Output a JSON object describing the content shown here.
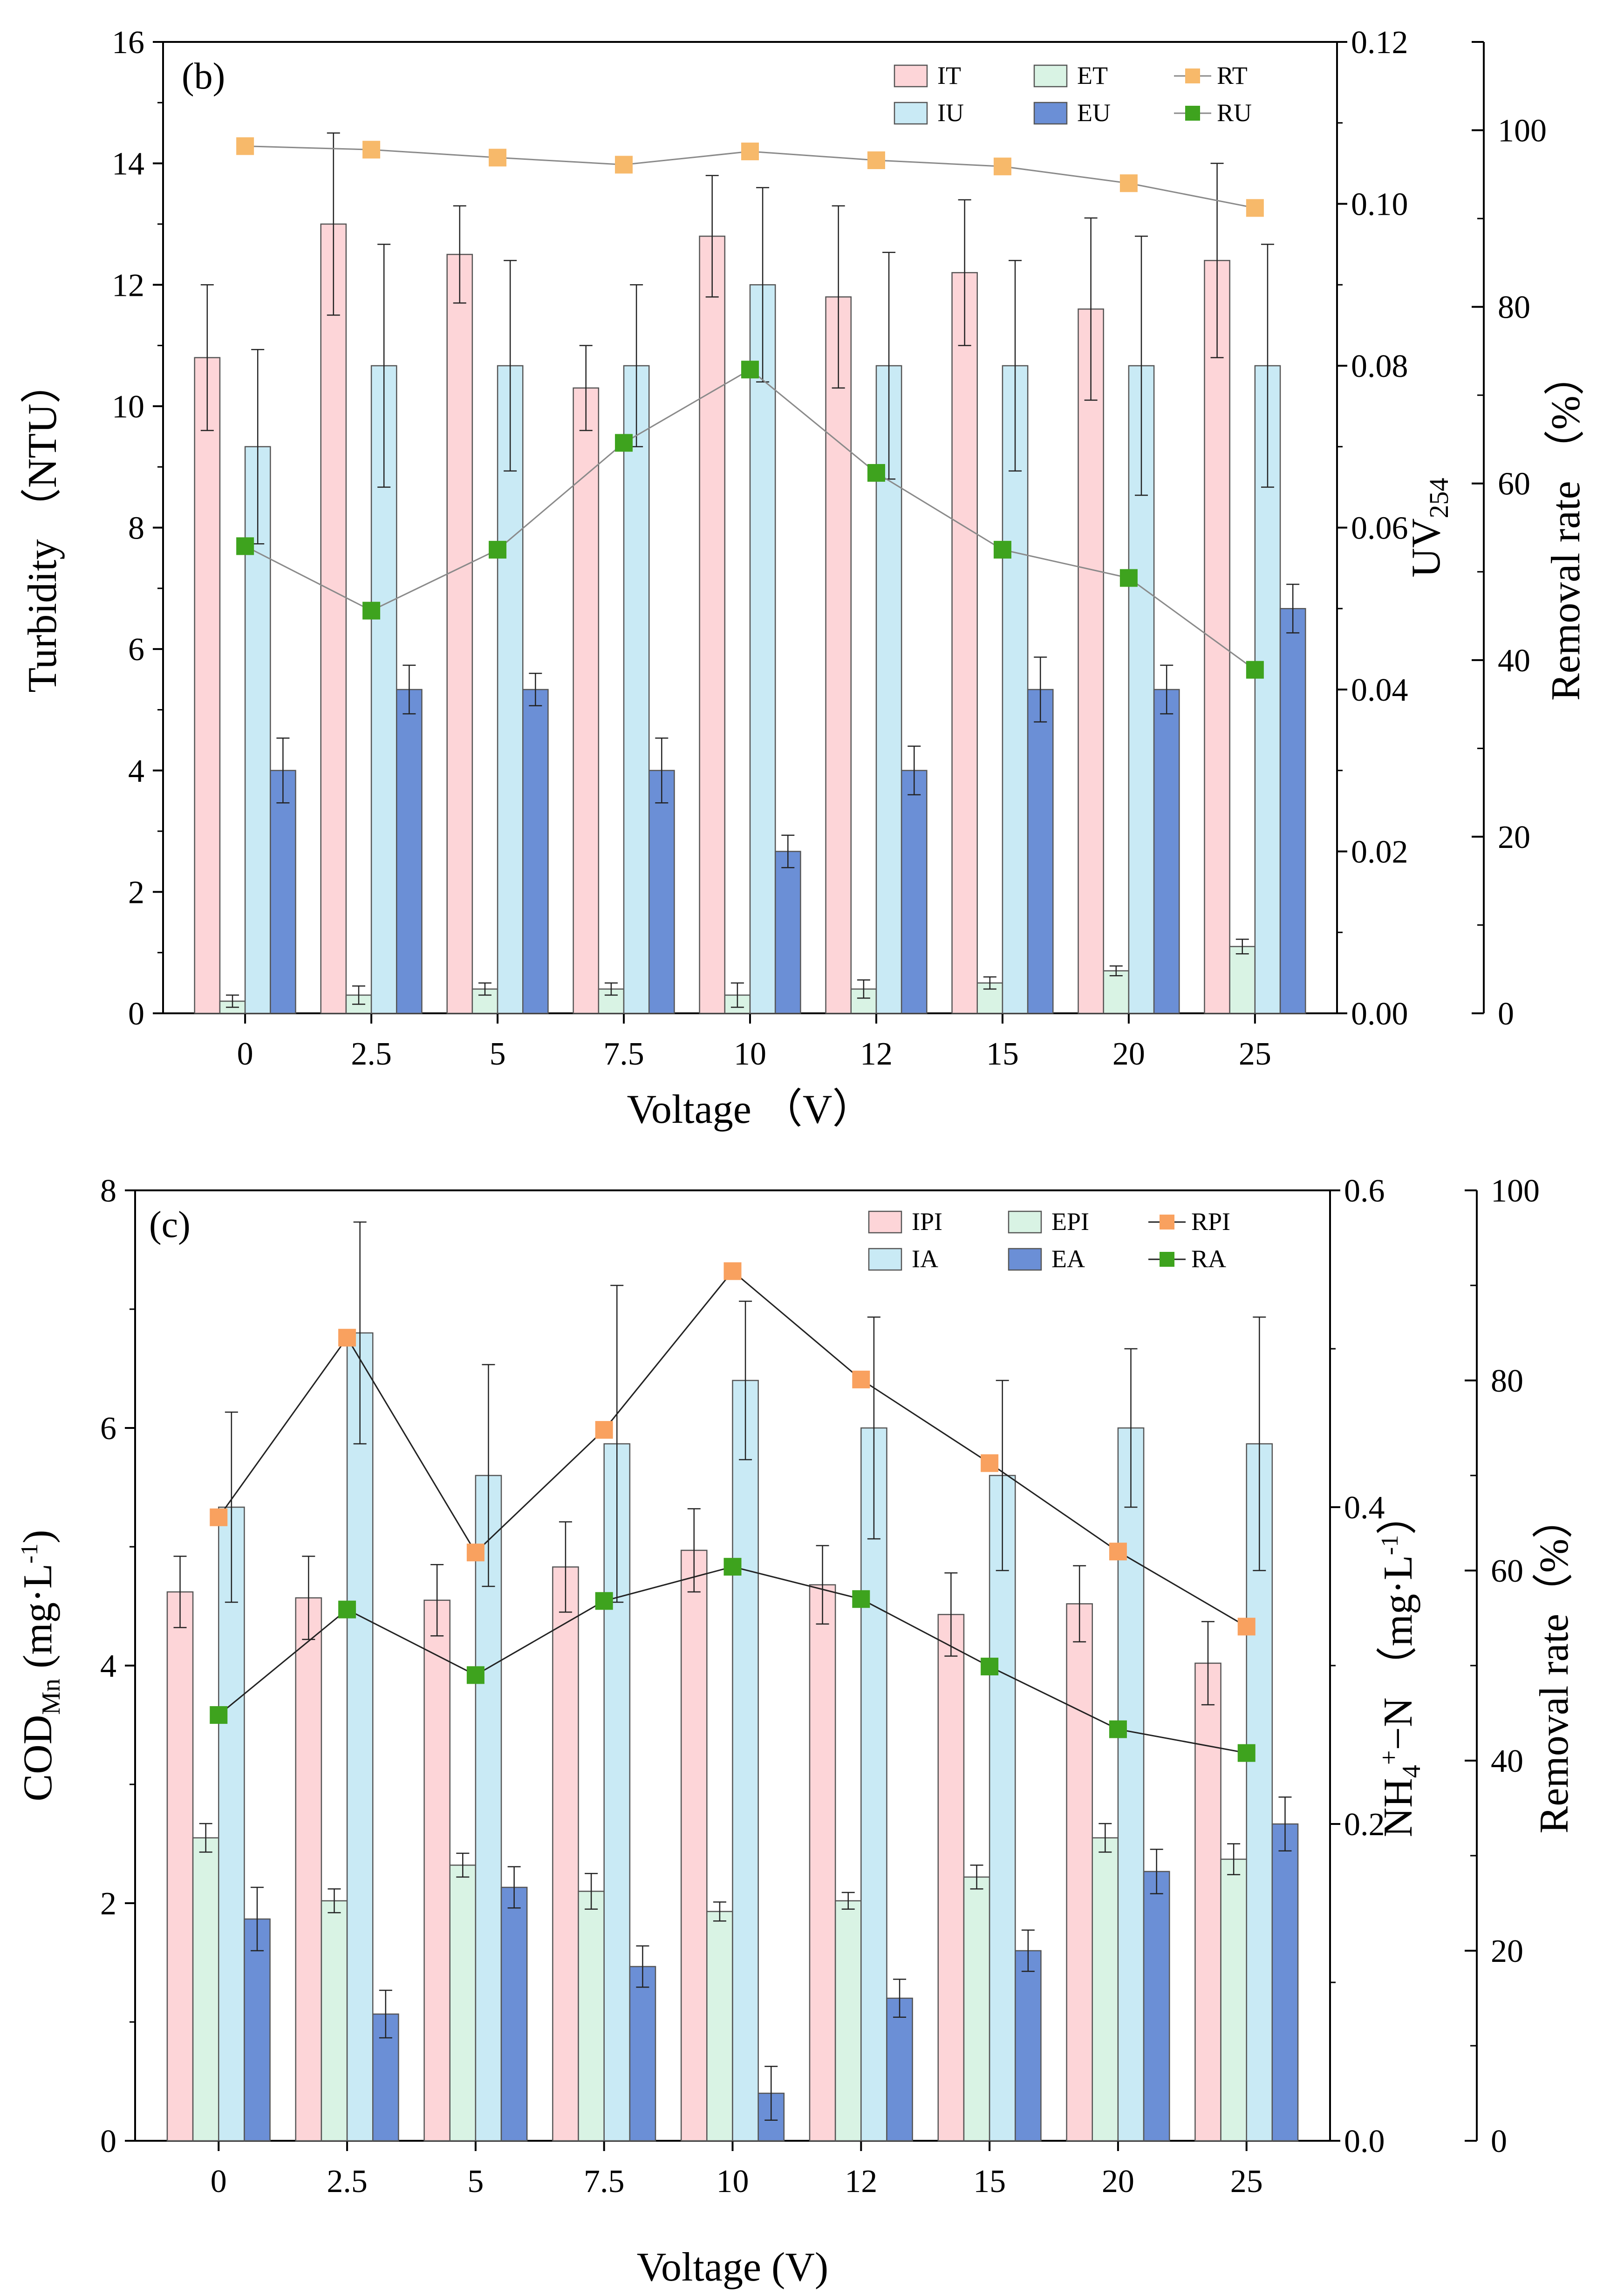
{
  "chart_data": [
    {
      "type": "bar",
      "panel": "(b)",
      "categories": [
        "0",
        "2.5",
        "5",
        "7.5",
        "10",
        "12",
        "15",
        "20",
        "25"
      ],
      "xlabel": "Voltage （V）",
      "ylabel": "Turbidity （NTU）",
      "ylabel2": "UV254",
      "ylabel3": "Removal rate （%）",
      "ylim": [
        0,
        16
      ],
      "y2lim": [
        0,
        0.12
      ],
      "y3lim": [
        0,
        110
      ],
      "yticks": [
        "0",
        "2",
        "4",
        "6",
        "8",
        "10",
        "12",
        "14",
        "16"
      ],
      "y2ticks": [
        "0.00",
        "0.02",
        "0.04",
        "0.06",
        "0.08",
        "0.10",
        "0.12"
      ],
      "y3ticks": [
        "0",
        "20",
        "40",
        "60",
        "80",
        "100"
      ],
      "series": [
        {
          "name": "IT",
          "kind": "bar",
          "axis": "left",
          "color": "#fdd5d8",
          "values": [
            10.8,
            13.0,
            12.5,
            10.3,
            12.8,
            11.8,
            12.2,
            11.6,
            12.4
          ],
          "errors": [
            1.2,
            1.5,
            0.8,
            0.7,
            1.0,
            1.5,
            1.2,
            1.5,
            1.6
          ]
        },
        {
          "name": "ET",
          "kind": "bar",
          "axis": "left",
          "color": "#d9f3e4",
          "values": [
            0.2,
            0.3,
            0.4,
            0.4,
            0.3,
            0.4,
            0.5,
            0.7,
            1.1
          ],
          "errors": [
            0.1,
            0.15,
            0.1,
            0.1,
            0.2,
            0.15,
            0.1,
            0.08,
            0.12
          ]
        },
        {
          "name": "IU",
          "kind": "bar",
          "axis": "right",
          "color": "#c9eaf5",
          "values": [
            0.07,
            0.08,
            0.08,
            0.08,
            0.09,
            0.08,
            0.08,
            0.08,
            0.08
          ],
          "errors": [
            0.012,
            0.015,
            0.013,
            0.01,
            0.012,
            0.014,
            0.013,
            0.016,
            0.015
          ]
        },
        {
          "name": "EU",
          "kind": "bar",
          "axis": "right",
          "color": "#6b8fd6",
          "values": [
            0.03,
            0.04,
            0.04,
            0.03,
            0.02,
            0.03,
            0.04,
            0.04,
            0.05
          ],
          "errors": [
            0.004,
            0.003,
            0.002,
            0.004,
            0.002,
            0.003,
            0.004,
            0.003,
            0.003
          ]
        },
        {
          "name": "RT",
          "kind": "line",
          "axis": "removal",
          "color": "#f7b96a",
          "values": [
            98.2,
            97.8,
            96.9,
            96.1,
            97.6,
            96.6,
            95.9,
            94.0,
            91.2
          ]
        },
        {
          "name": "RU",
          "kind": "line",
          "axis": "removal",
          "color": "#3ea31e",
          "values": [
            52.9,
            45.6,
            52.5,
            64.6,
            72.9,
            61.2,
            52.5,
            49.3,
            38.9
          ]
        }
      ],
      "legend_entries": [
        "IT",
        "ET",
        "RT",
        "IU",
        "EU",
        "RU"
      ],
      "legend_position": "top-right"
    },
    {
      "type": "bar",
      "panel": "(c)",
      "categories": [
        "0",
        "2.5",
        "5",
        "7.5",
        "10",
        "12",
        "15",
        "20",
        "25"
      ],
      "xlabel": "Voltage (V)",
      "ylabel_main": "COD",
      "ylabel_sub": "Mn",
      "ylabel_unit": " (mg·L",
      "ylabel_sup": "-1",
      "ylabel_end": ")",
      "ylabel2_main": "NH",
      "ylabel2_sub": "4",
      "ylabel2_sup": "+",
      "ylabel2_unit": "−N （mg·L",
      "ylabel2_sup2": "-1",
      "ylabel2_end": "）",
      "ylabel3": "Removal rate（%）",
      "ylim": [
        0,
        8
      ],
      "y2lim": [
        0,
        0.6
      ],
      "y3lim": [
        0,
        100
      ],
      "yticks": [
        "0",
        "2",
        "4",
        "6",
        "8"
      ],
      "y2ticks": [
        "0.0",
        "0.2",
        "0.4",
        "0.6"
      ],
      "y3ticks": [
        "0",
        "20",
        "40",
        "60",
        "80",
        "100"
      ],
      "series": [
        {
          "name": "IPI",
          "kind": "bar",
          "axis": "left",
          "color": "#fdd5d8",
          "values": [
            4.62,
            4.57,
            4.55,
            4.83,
            4.97,
            4.68,
            4.43,
            4.52,
            4.02
          ],
          "errors": [
            0.3,
            0.35,
            0.3,
            0.38,
            0.35,
            0.33,
            0.35,
            0.32,
            0.35
          ]
        },
        {
          "name": "EPI",
          "kind": "bar",
          "axis": "left",
          "color": "#d9f3e4",
          "values": [
            2.55,
            2.02,
            2.32,
            2.1,
            1.93,
            2.02,
            2.22,
            2.55,
            2.37
          ],
          "errors": [
            0.12,
            0.1,
            0.1,
            0.15,
            0.08,
            0.07,
            0.1,
            0.12,
            0.13
          ]
        },
        {
          "name": "IA",
          "kind": "bar",
          "axis": "right",
          "color": "#c9eaf5",
          "values": [
            0.4,
            0.51,
            0.42,
            0.44,
            0.48,
            0.45,
            0.42,
            0.45,
            0.44
          ],
          "errors": [
            0.06,
            0.07,
            0.07,
            0.1,
            0.05,
            0.07,
            0.06,
            0.05,
            0.08
          ]
        },
        {
          "name": "EA",
          "kind": "bar",
          "axis": "right",
          "color": "#6b8fd6",
          "values": [
            0.14,
            0.08,
            0.16,
            0.11,
            0.03,
            0.09,
            0.12,
            0.17,
            0.2
          ],
          "errors": [
            0.02,
            0.015,
            0.013,
            0.013,
            0.017,
            0.012,
            0.013,
            0.014,
            0.017
          ]
        },
        {
          "name": "RPI",
          "kind": "line",
          "axis": "removal",
          "color": "#f9a15f",
          "values": [
            65.6,
            84.5,
            61.9,
            74.8,
            91.5,
            80.1,
            71.3,
            62.0,
            54.1
          ]
        },
        {
          "name": "RA",
          "kind": "line",
          "axis": "removal",
          "color": "#3ea31e",
          "values": [
            44.8,
            55.9,
            49.0,
            56.8,
            60.4,
            57.0,
            49.9,
            43.3,
            40.8
          ]
        }
      ],
      "legend_entries": [
        "IPI",
        "EPI",
        "RPI",
        "IA",
        "EA",
        "RA"
      ],
      "legend_position": "top-right"
    }
  ]
}
